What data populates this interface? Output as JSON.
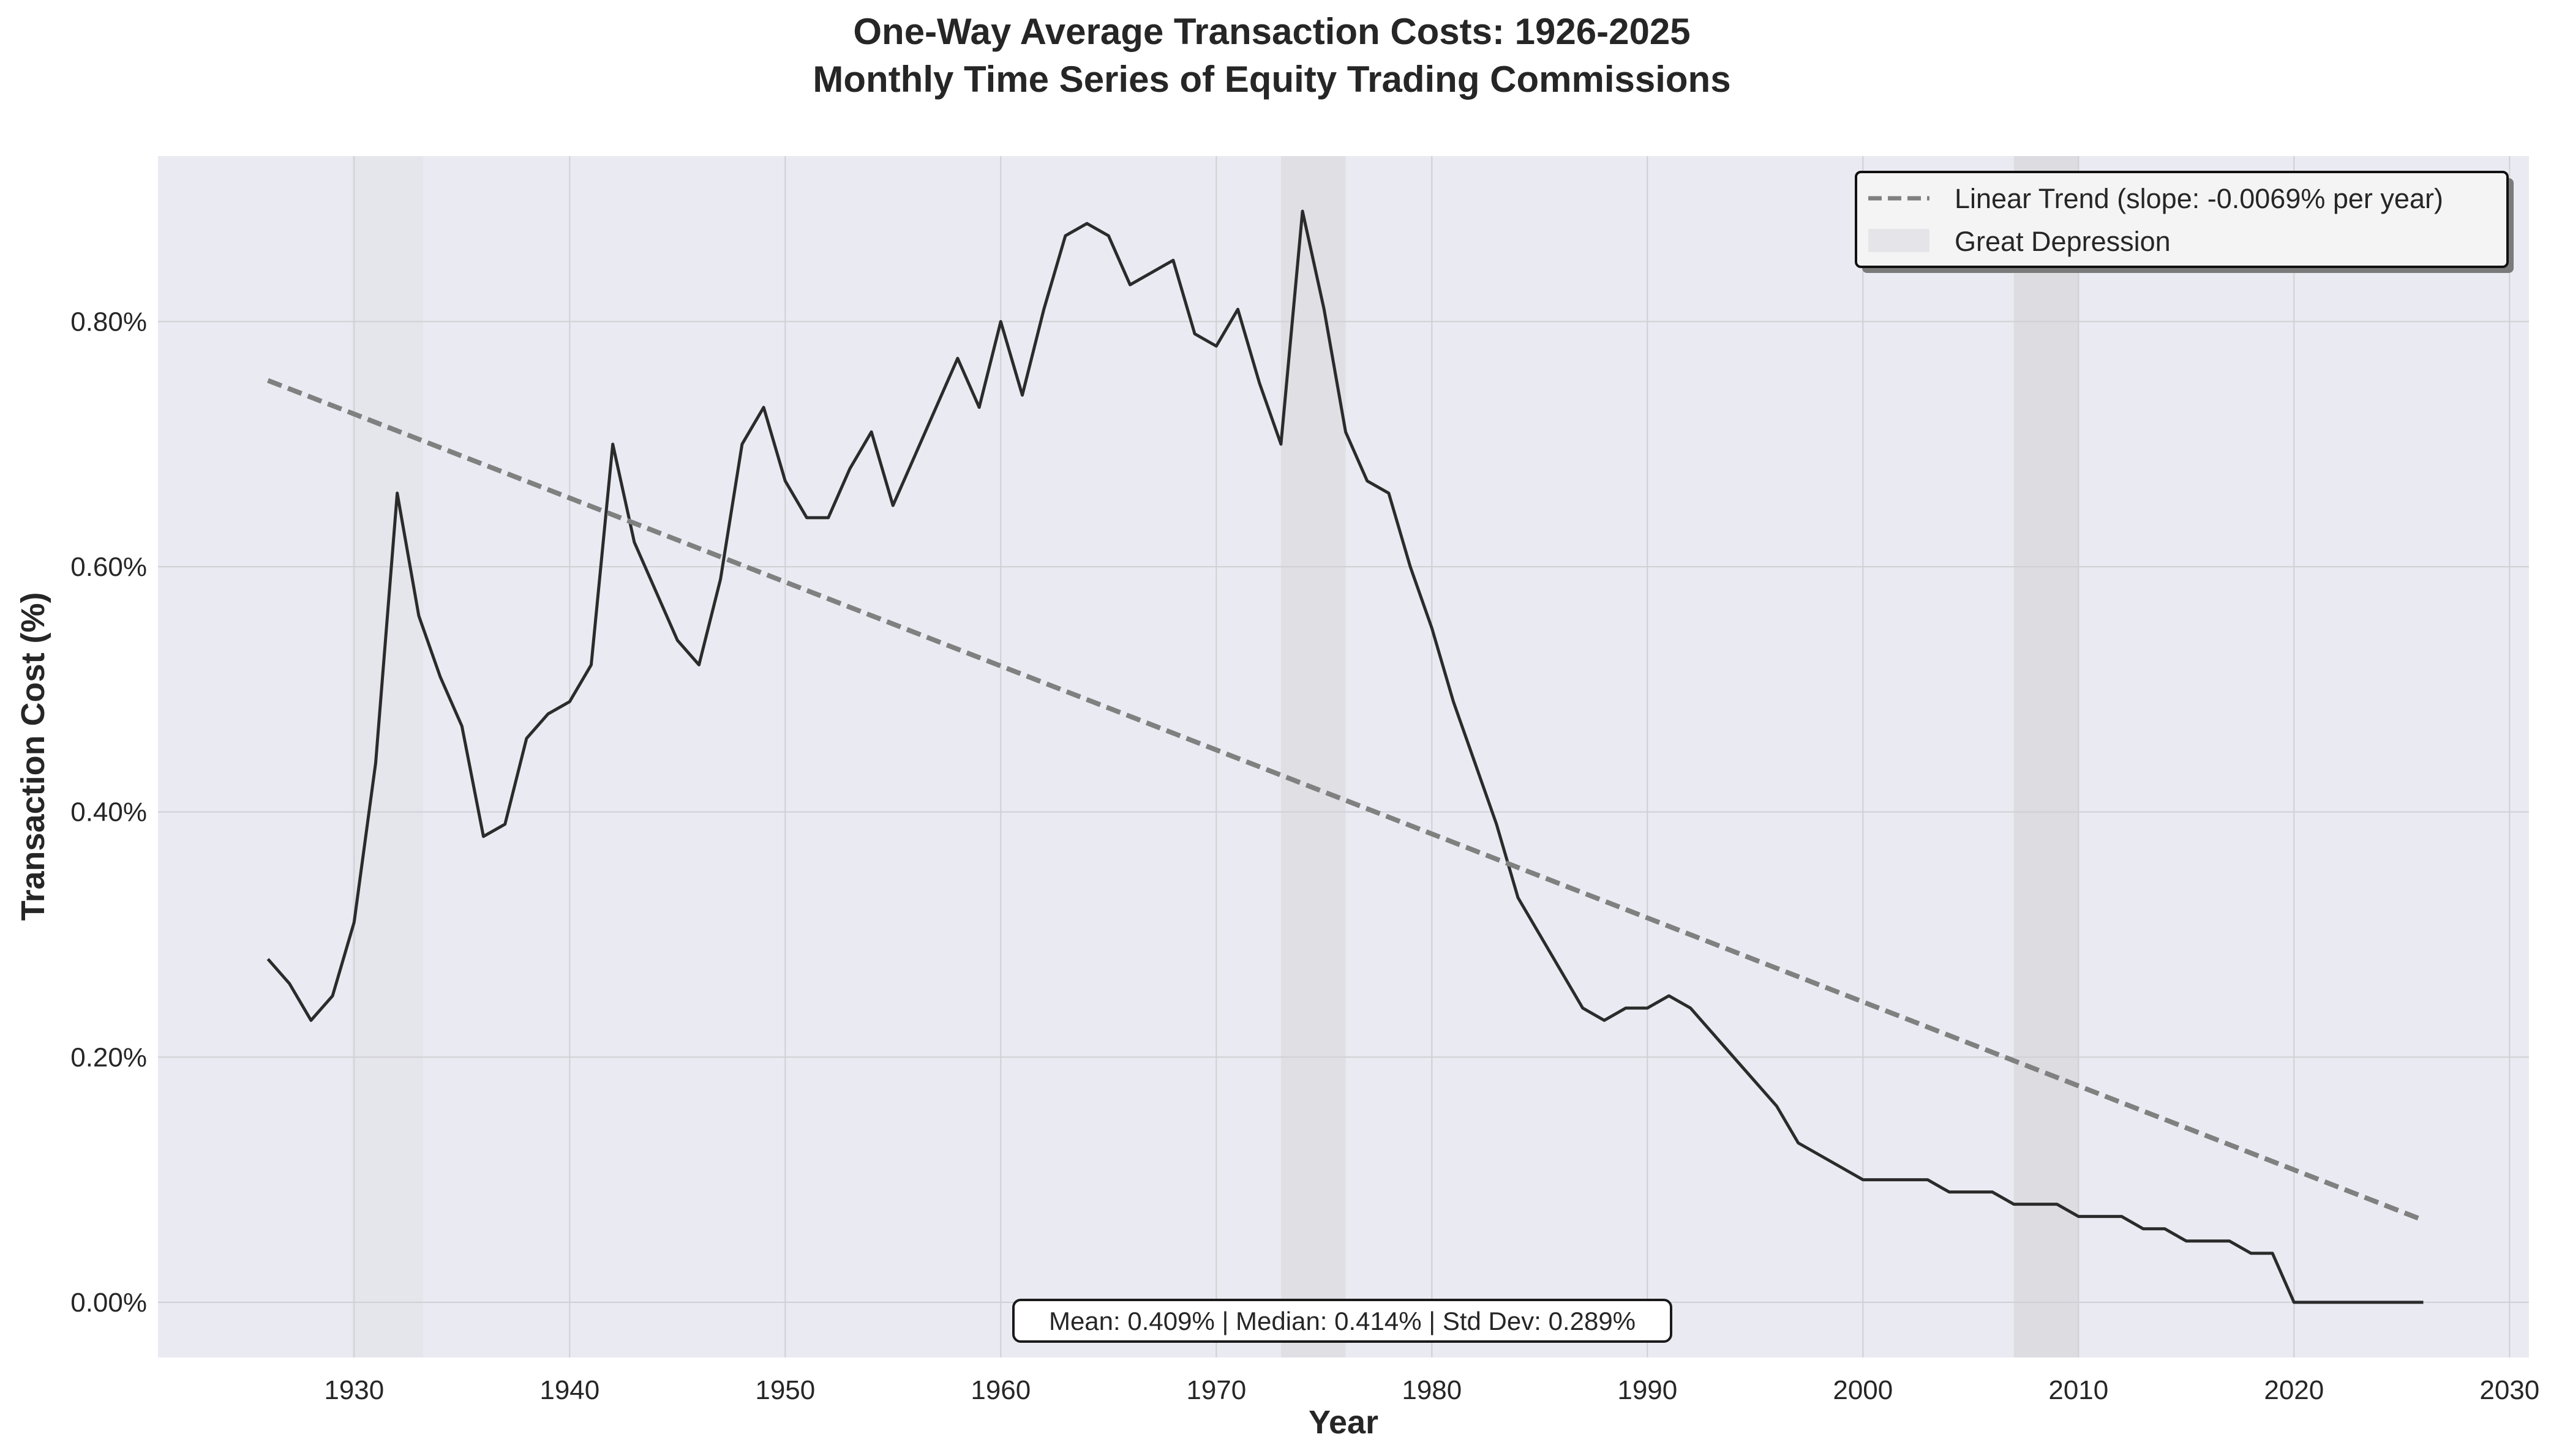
{
  "chart_data": {
    "type": "line",
    "title_line1": "One-Way Average Transaction Costs: 1926-2025",
    "title_line2": "Monthly Time Series of Equity Trading Commissions",
    "xlabel": "Year",
    "ylabel": "Transaction Cost (%)",
    "xlim": [
      1920.9,
      2030.9
    ],
    "ylim": [
      -0.045,
      0.935
    ],
    "x_ticks": [
      1930,
      1940,
      1950,
      1960,
      1970,
      1980,
      1990,
      2000,
      2010,
      2020,
      2030
    ],
    "x_tick_labels": [
      "1930",
      "1940",
      "1950",
      "1960",
      "1970",
      "1980",
      "1990",
      "2000",
      "2010",
      "2020",
      "2030"
    ],
    "y_ticks": [
      0.0,
      0.2,
      0.4,
      0.6,
      0.8
    ],
    "y_tick_labels": [
      "0.00%",
      "0.20%",
      "0.40%",
      "0.60%",
      "0.80%"
    ],
    "grid": true,
    "legend_position": "top-right",
    "legend": {
      "trend_label": "Linear Trend (slope: -0.0069% per year)",
      "shade_label": "Great Depression"
    },
    "stats_box": "Mean: 0.409% | Median: 0.414% | Std Dev: 0.289%",
    "shaded_periods": [
      {
        "label": "Great Depression",
        "start": 1929.9,
        "end": 1933.2,
        "color": "#e5e5ec"
      },
      {
        "start": 1973.0,
        "end": 1976.0,
        "color": "#dfdfe4"
      },
      {
        "start": 2007.0,
        "end": 2010.0,
        "color": "#dcdce1"
      }
    ],
    "series": [
      {
        "type": "line",
        "color": "#2b2b2b",
        "x": [
          1926,
          1927,
          1928,
          1929,
          1930,
          1931,
          1932,
          1933,
          1934,
          1935,
          1936,
          1937,
          1938,
          1939,
          1940,
          1941,
          1942,
          1943,
          1944,
          1945,
          1946,
          1947,
          1948,
          1949,
          1950,
          1951,
          1952,
          1953,
          1954,
          1955,
          1956,
          1957,
          1958,
          1959,
          1960,
          1961,
          1962,
          1963,
          1964,
          1965,
          1966,
          1967,
          1968,
          1969,
          1970,
          1971,
          1972,
          1973,
          1974,
          1975,
          1976,
          1977,
          1978,
          1979,
          1980,
          1981,
          1982,
          1983,
          1984,
          1985,
          1986,
          1987,
          1988,
          1989,
          1990,
          1991,
          1992,
          1993,
          1994,
          1995,
          1996,
          1997,
          1998,
          1999,
          2000,
          2001,
          2002,
          2003,
          2004,
          2005,
          2006,
          2007,
          2008,
          2009,
          2010,
          2011,
          2012,
          2013,
          2014,
          2015,
          2016,
          2017,
          2018,
          2019,
          2020,
          2021,
          2022,
          2023,
          2024,
          2025,
          2026
        ],
        "values": [
          0.28,
          0.26,
          0.23,
          0.25,
          0.31,
          0.44,
          0.66,
          0.56,
          0.51,
          0.47,
          0.38,
          0.39,
          0.46,
          0.48,
          0.49,
          0.52,
          0.7,
          0.62,
          0.58,
          0.54,
          0.52,
          0.59,
          0.7,
          0.73,
          0.67,
          0.64,
          0.64,
          0.68,
          0.71,
          0.65,
          0.69,
          0.73,
          0.77,
          0.73,
          0.8,
          0.74,
          0.81,
          0.87,
          0.88,
          0.87,
          0.83,
          0.84,
          0.85,
          0.79,
          0.78,
          0.81,
          0.75,
          0.7,
          0.89,
          0.81,
          0.71,
          0.67,
          0.66,
          0.6,
          0.55,
          0.49,
          0.44,
          0.39,
          0.33,
          0.3,
          0.27,
          0.24,
          0.23,
          0.24,
          0.24,
          0.25,
          0.24,
          0.22,
          0.2,
          0.18,
          0.16,
          0.13,
          0.12,
          0.11,
          0.1,
          0.1,
          0.1,
          0.1,
          0.09,
          0.09,
          0.09,
          0.08,
          0.08,
          0.08,
          0.07,
          0.07,
          0.07,
          0.06,
          0.06,
          0.05,
          0.05,
          0.05,
          0.04,
          0.04,
          0.0,
          0.0,
          0.0,
          0.0,
          0.0,
          0.0,
          0.0
        ]
      },
      {
        "name": "Linear Trend (slope: -0.0069% per year)",
        "type": "line",
        "style": "dashed",
        "color": "#808080",
        "x": [
          1926,
          2026
        ],
        "values": [
          0.752,
          0.067
        ]
      }
    ]
  }
}
